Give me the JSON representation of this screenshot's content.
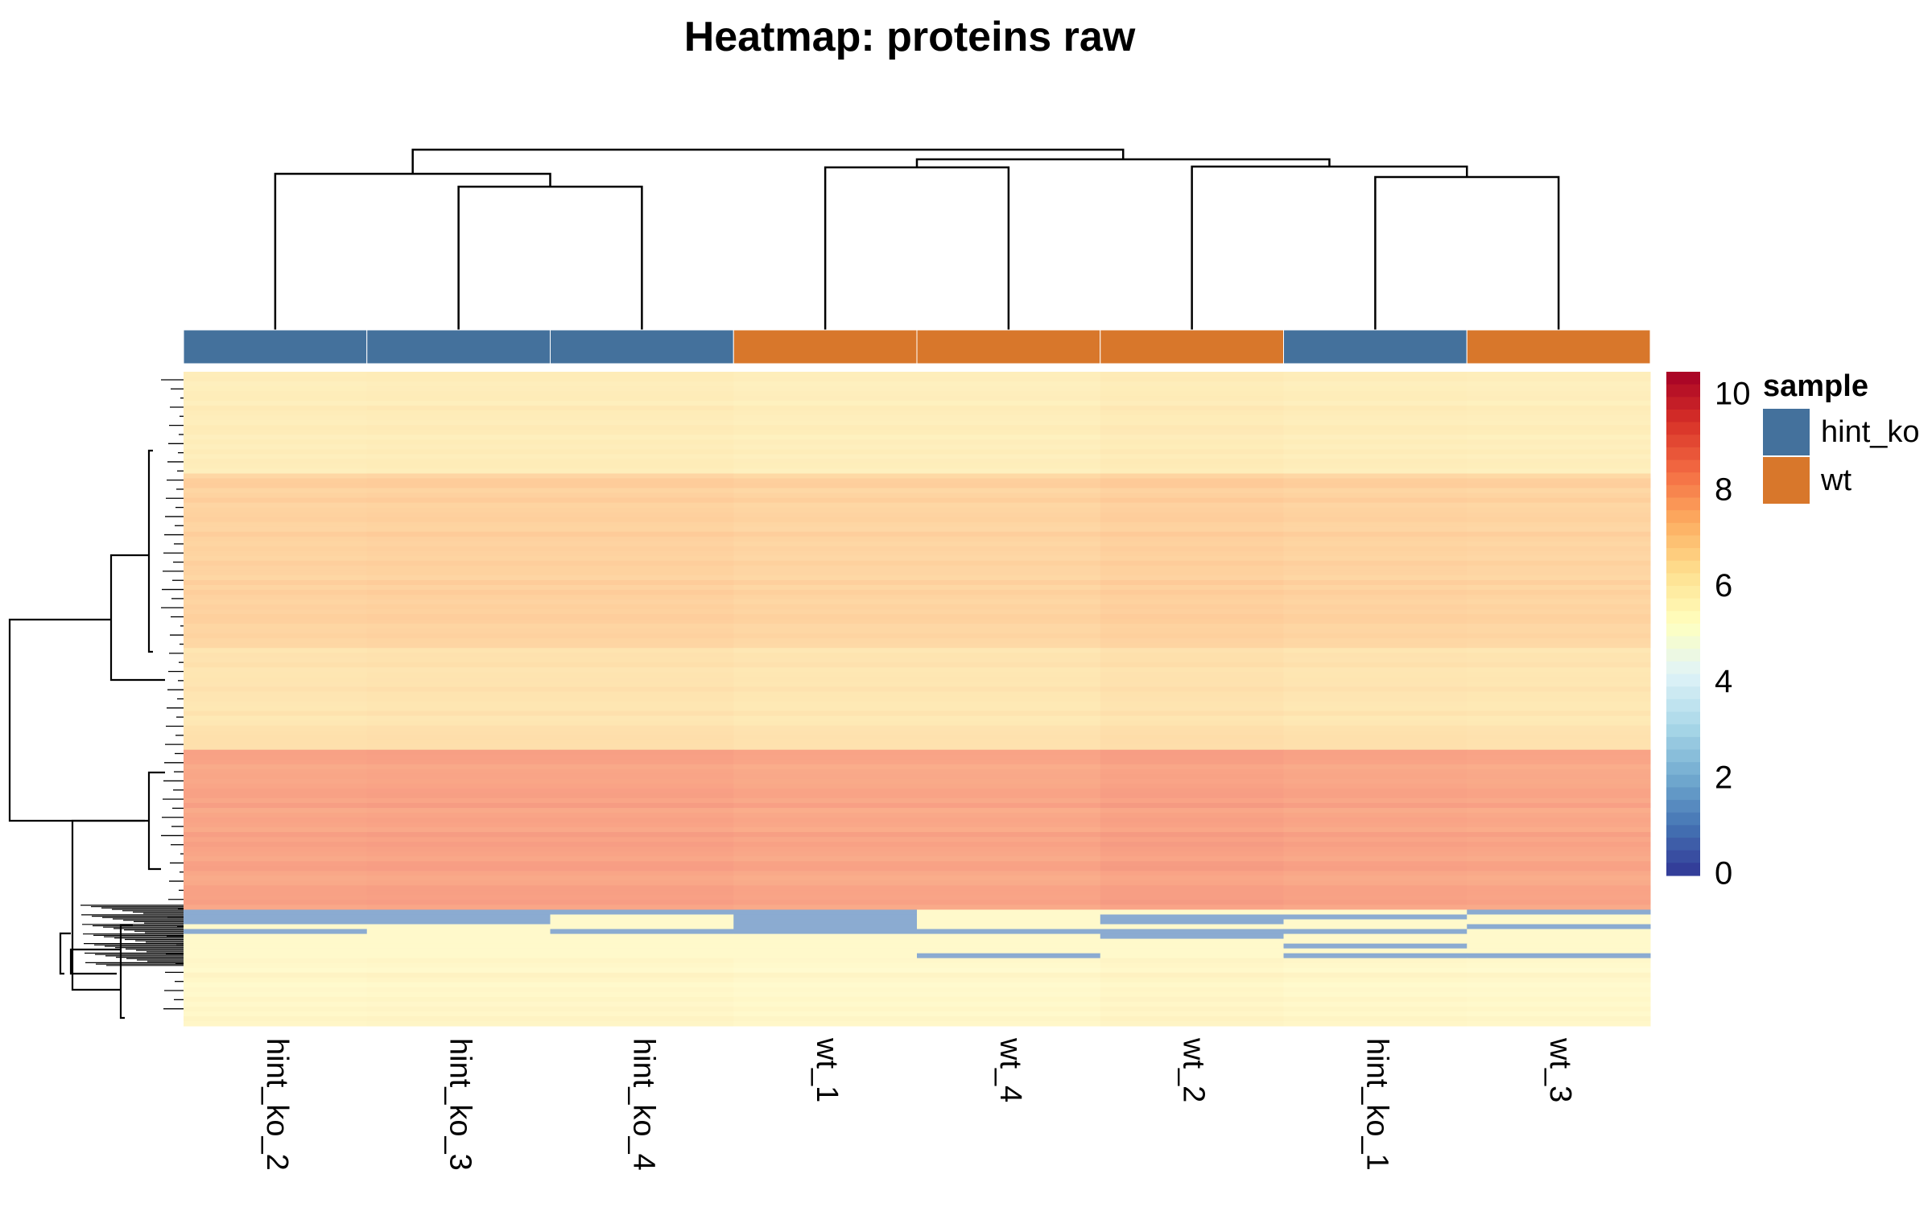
{
  "chart_data": {
    "type": "heatmap",
    "title": "Heatmap: proteins raw",
    "samples": [
      "hint_ko_2",
      "hint_ko_3",
      "hint_ko_4",
      "wt_1",
      "wt_4",
      "wt_2",
      "hint_ko_1",
      "wt_3"
    ],
    "sample_groups": [
      "hint_ko",
      "hint_ko",
      "hint_ko",
      "wt",
      "wt",
      "wt",
      "hint_ko",
      "wt"
    ],
    "annotation": {
      "title": "sample",
      "groups": [
        {
          "name": "hint_ko",
          "color": "#44719C"
        },
        {
          "name": "wt",
          "color": "#D8772B"
        }
      ]
    },
    "color_scale": {
      "min": 0,
      "max": 10.5,
      "ticks": [
        "0",
        "2",
        "4",
        "6",
        "8",
        "10"
      ],
      "tick_values": [
        0,
        2,
        4,
        6,
        8,
        10
      ],
      "palette": "RdYlBu (reversed)"
    },
    "row_blocks": [
      {
        "value": 6.2,
        "weight": 84
      },
      {
        "value": 7.1,
        "weight": 144
      },
      {
        "value": 6.5,
        "weight": 84
      },
      {
        "value": 8.3,
        "weight": 132
      },
      {
        "value": 1.5,
        "weight": 40
      },
      {
        "value": 5.7,
        "weight": 56
      }
    ],
    "col_offsets": [
      0.0,
      0.05,
      0.05,
      -0.05,
      -0.05,
      0.1,
      0.0,
      -0.05
    ]
  }
}
